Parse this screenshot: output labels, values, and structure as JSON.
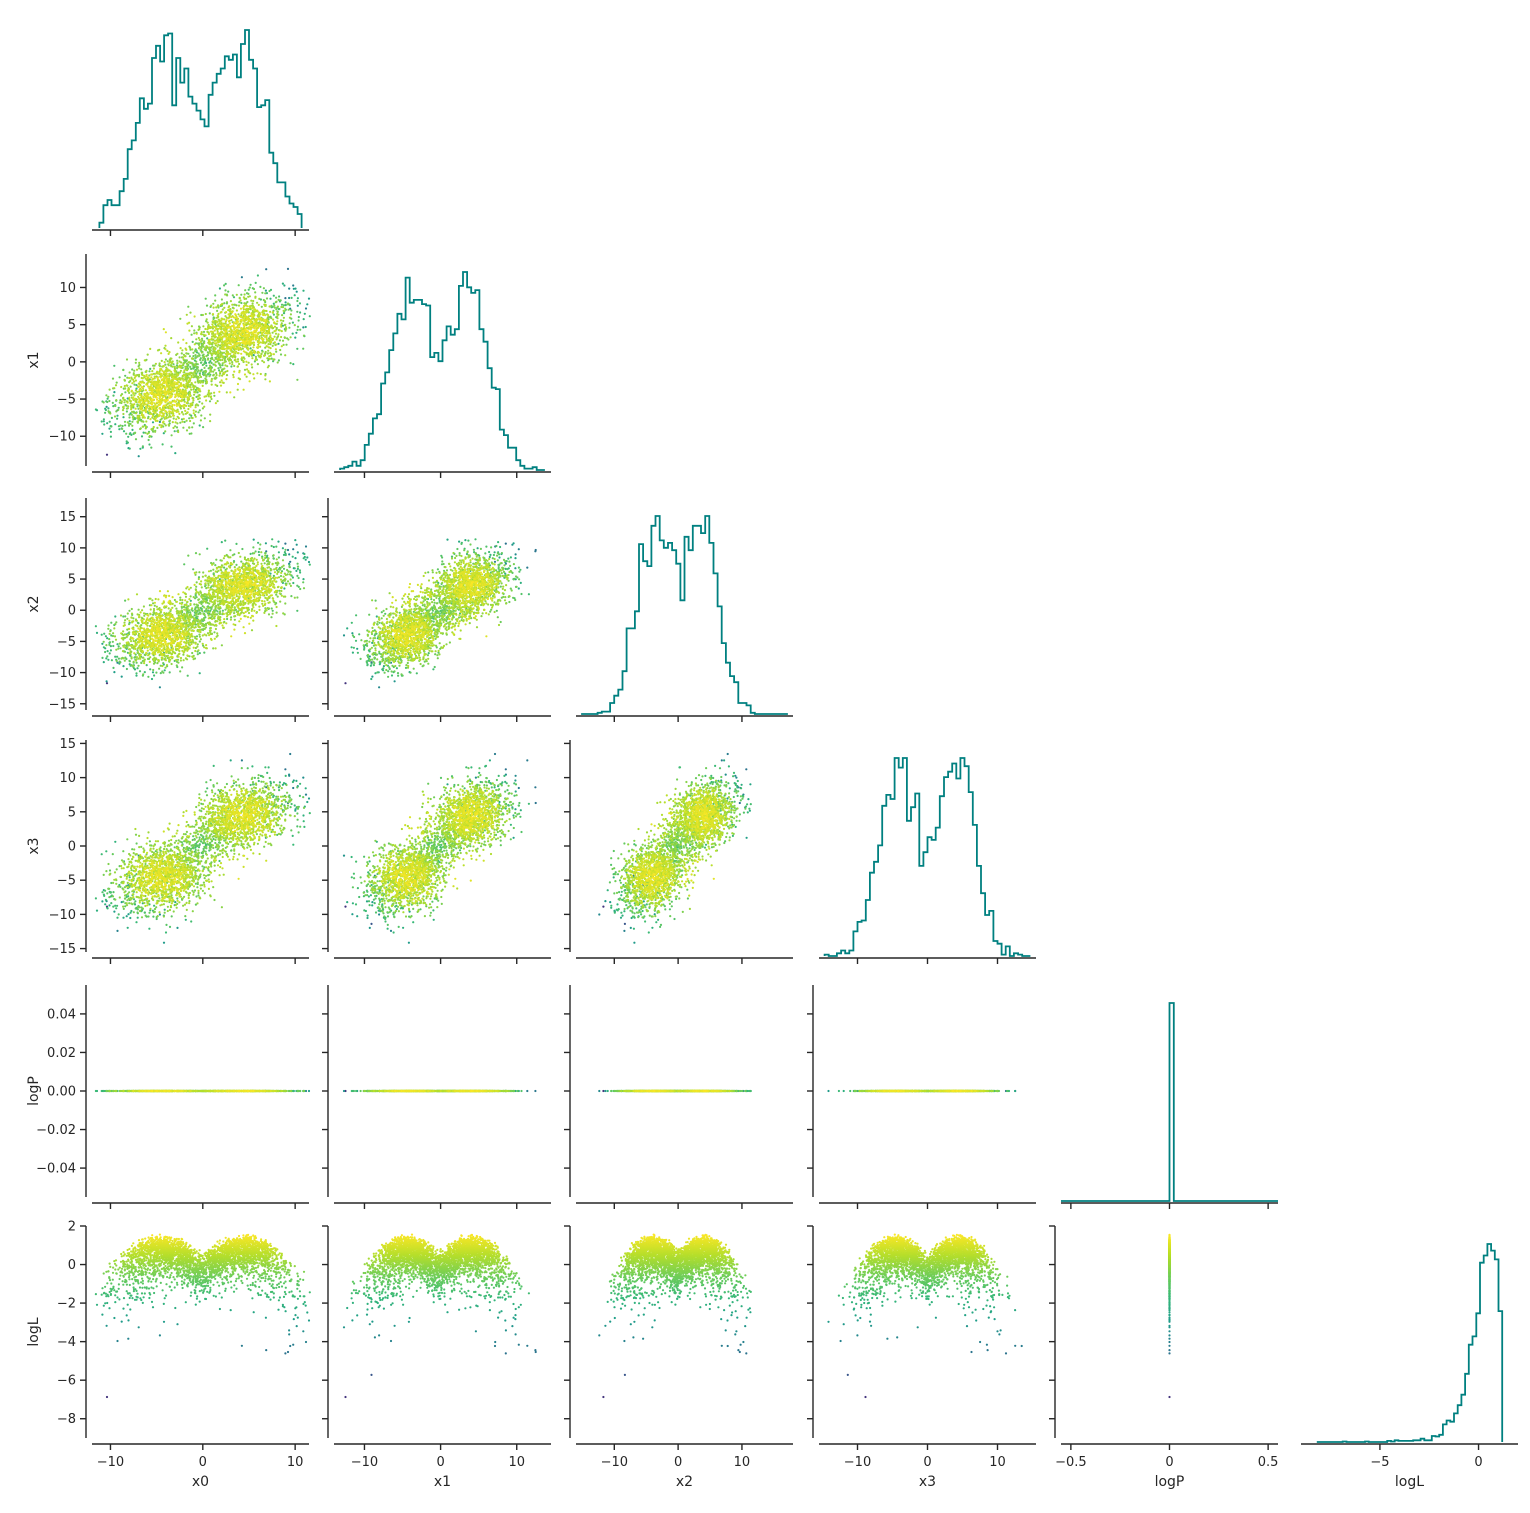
{
  "chart_data": {
    "type": "scatter",
    "layout": "corner-plot",
    "variables": [
      "x0",
      "x1",
      "x2",
      "x3",
      "logP",
      "logL"
    ],
    "x_axis_labels": [
      "x0",
      "x1",
      "x2",
      "x3",
      "logP",
      "logL"
    ],
    "y_axis_labels": [
      "",
      "x1",
      "x2",
      "x3",
      "logP",
      "logL"
    ],
    "limits": {
      "x0": [
        -12,
        11.5
      ],
      "x1": [
        -14,
        14.5
      ],
      "x2": [
        -16,
        18
      ],
      "x3": [
        -15.5,
        15.5
      ],
      "logP": [
        -0.055,
        0.055
      ],
      "logL": [
        -9,
        2
      ]
    },
    "ticks": {
      "x0": [
        -10,
        0,
        10
      ],
      "x1": [
        -10,
        0,
        10
      ],
      "x2": [
        -10,
        0,
        10
      ],
      "x3": [
        -10,
        0,
        10
      ],
      "logP_as_x": [
        -0.5,
        0,
        0.5
      ],
      "logL_as_x": [
        -5,
        0
      ]
    },
    "y_ticks": {
      "x1": [
        -10,
        -5,
        0,
        5,
        10
      ],
      "x2": [
        -15,
        -10,
        -5,
        0,
        5,
        10,
        15
      ],
      "x3": [
        -15,
        -10,
        -5,
        0,
        5,
        10,
        15
      ],
      "logP": [
        -0.04,
        -0.02,
        0.0,
        0.02,
        0.04
      ],
      "logL": [
        -8,
        -6,
        -4,
        -2,
        0,
        2
      ]
    },
    "tick_labels": {
      "-10": "−10",
      "0": "0",
      "10": "10",
      "-15": "−15",
      "-5": "−5",
      "5": "5",
      "15": "15",
      "-0.04": "−0.04",
      "-0.02": "−0.02",
      "0.00": "0.00",
      "0.02": "0.02",
      "0.04": "0.04",
      "-8": "−8",
      "-6": "−6",
      "-4": "−4",
      "-2": "−2",
      "2": "2",
      "-0.5": "−0.5",
      "0.5": "0.5"
    },
    "hist_color": "#008080",
    "scatter_colormap": "viridis",
    "scatter_color_by": "logL",
    "diagonal_histograms": {
      "x0": "bimodal, peaks near -5 and 4.5",
      "x1": "bimodal, peaks near -4.5 and 4",
      "x2": "bimodal, peaks near -3 and 4",
      "x3": "bimodal, peaks near -5 and 4",
      "logP": "single spike at 0",
      "logL": "left-skewed, peak near 0.8, range -9 to 1.6"
    },
    "modes": [
      {
        "center": [
          -4.5,
          -4.5,
          -4,
          -4.5
        ],
        "spread": 2.6
      },
      {
        "center": [
          4.5,
          4,
          4,
          4.5
        ],
        "spread": 2.6
      }
    ],
    "logP_value": 0.0,
    "logL_max": 1.6,
    "logL_min": -8.4,
    "grid": false,
    "legend": "none"
  }
}
